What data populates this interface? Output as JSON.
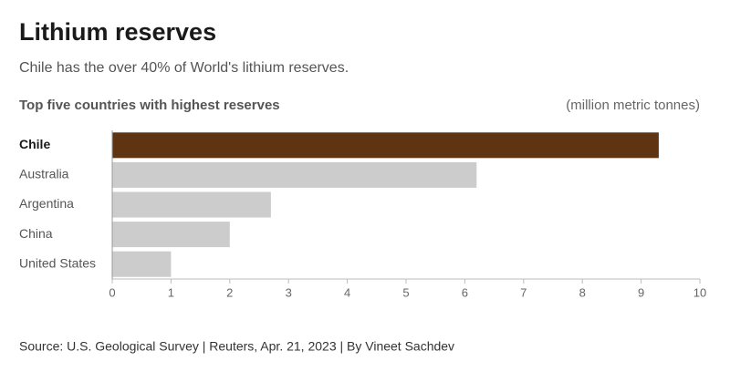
{
  "chart_data": {
    "type": "hbar",
    "title": "Lithium reserves",
    "subtitle": "Chile has the over 40% of World's lithium reserves.",
    "chart_title": "Top five countries with highest reserves",
    "unit_label": "(million metric tonnes)",
    "categories": [
      "Chile",
      "Australia",
      "Argentina",
      "China",
      "United States"
    ],
    "values": [
      9.3,
      6.2,
      2.7,
      2.0,
      1.0
    ],
    "colors": [
      "#5e3413",
      "#cccccc",
      "#cccccc",
      "#cccccc",
      "#cccccc"
    ],
    "highlight": 0,
    "xlim": [
      0,
      10
    ],
    "xticks": [
      0,
      1,
      2,
      3,
      4,
      5,
      6,
      7,
      8,
      9,
      10
    ],
    "source": "Source: U.S. Geological Survey | Reuters, Apr. 21, 2023 | By Vineet Sachdev"
  }
}
